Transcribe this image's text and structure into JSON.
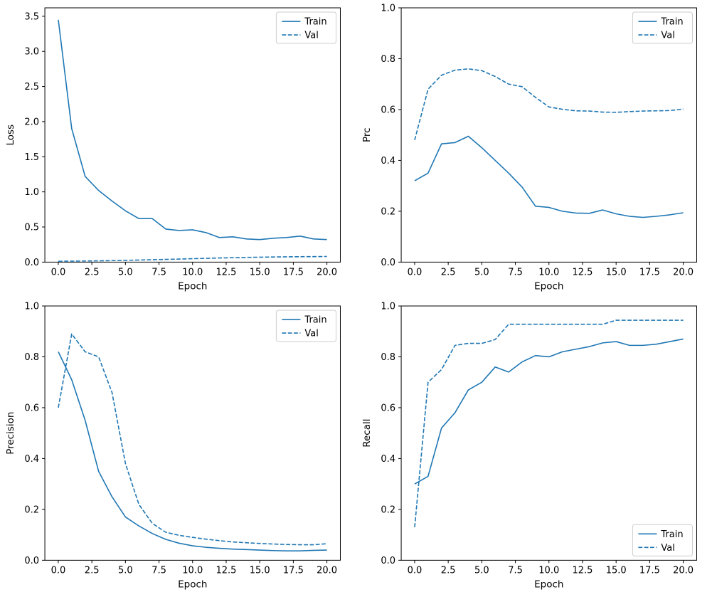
{
  "figure": {
    "background": "#ffffff",
    "spine_color": "#000000",
    "text_color": "#000000",
    "legend_edge_color": "#cccccc",
    "accent_color": "#1f77b4"
  },
  "chart_data": [
    {
      "type": "line",
      "title": "",
      "xlabel": "Epoch",
      "ylabel": "Loss",
      "grid": false,
      "xlim": [
        -1,
        21
      ],
      "ylim": [
        0,
        3.62
      ],
      "xticks": [
        0,
        2.5,
        5,
        7.5,
        10,
        12.5,
        15,
        17.5,
        20
      ],
      "xtick_labels": [
        "0.0",
        "2.5",
        "5.0",
        "7.5",
        "10.0",
        "12.5",
        "15.0",
        "17.5",
        "20.0"
      ],
      "yticks": [
        0,
        0.5,
        1.0,
        1.5,
        2.0,
        2.5,
        3.0,
        3.5
      ],
      "ytick_labels": [
        "0.0",
        "0.5",
        "1.0",
        "1.5",
        "2.0",
        "2.5",
        "3.0",
        "3.5"
      ],
      "x": [
        0,
        1,
        2,
        3,
        4,
        5,
        6,
        7,
        8,
        9,
        10,
        11,
        12,
        13,
        14,
        15,
        16,
        17,
        18,
        19,
        20
      ],
      "series": [
        {
          "name": "Train",
          "linestyle": "solid",
          "color": "#1f77b4",
          "values": [
            3.45,
            1.9,
            1.22,
            1.02,
            0.87,
            0.73,
            0.62,
            0.62,
            0.47,
            0.45,
            0.46,
            0.42,
            0.35,
            0.36,
            0.33,
            0.32,
            0.34,
            0.35,
            0.37,
            0.33,
            0.32
          ]
        },
        {
          "name": "Val",
          "linestyle": "dashed",
          "color": "#1f77b4",
          "values": [
            0.012,
            0.013,
            0.016,
            0.018,
            0.021,
            0.025,
            0.029,
            0.034,
            0.039,
            0.044,
            0.049,
            0.054,
            0.059,
            0.063,
            0.067,
            0.07,
            0.073,
            0.075,
            0.077,
            0.078,
            0.08
          ]
        }
      ],
      "legend": {
        "entries": [
          "Train",
          "Val"
        ],
        "loc": "upper right"
      }
    },
    {
      "type": "line",
      "title": "",
      "xlabel": "Epoch",
      "ylabel": "Prc",
      "grid": false,
      "xlim": [
        -1,
        21
      ],
      "ylim": [
        0,
        1
      ],
      "xticks": [
        0,
        2.5,
        5,
        7.5,
        10,
        12.5,
        15,
        17.5,
        20
      ],
      "xtick_labels": [
        "0.0",
        "2.5",
        "5.0",
        "7.5",
        "10.0",
        "12.5",
        "15.0",
        "17.5",
        "20.0"
      ],
      "yticks": [
        0,
        0.2,
        0.4,
        0.6,
        0.8,
        1.0
      ],
      "ytick_labels": [
        "0.0",
        "0.2",
        "0.4",
        "0.6",
        "0.8",
        "1.0"
      ],
      "x": [
        0,
        1,
        2,
        3,
        4,
        5,
        6,
        7,
        8,
        9,
        10,
        11,
        12,
        13,
        14,
        15,
        16,
        17,
        18,
        19,
        20
      ],
      "series": [
        {
          "name": "Train",
          "linestyle": "solid",
          "color": "#1f77b4",
          "values": [
            0.32,
            0.35,
            0.465,
            0.47,
            0.495,
            0.45,
            0.4,
            0.35,
            0.295,
            0.22,
            0.215,
            0.2,
            0.193,
            0.192,
            0.205,
            0.19,
            0.18,
            0.176,
            0.18,
            0.186,
            0.194
          ]
        },
        {
          "name": "Val",
          "linestyle": "dashed",
          "color": "#1f77b4",
          "values": [
            0.48,
            0.68,
            0.735,
            0.755,
            0.76,
            0.753,
            0.73,
            0.7,
            0.69,
            0.648,
            0.61,
            0.601,
            0.595,
            0.594,
            0.59,
            0.589,
            0.592,
            0.594,
            0.595,
            0.596,
            0.602
          ]
        }
      ],
      "legend": {
        "entries": [
          "Train",
          "Val"
        ],
        "loc": "upper right"
      }
    },
    {
      "type": "line",
      "title": "",
      "xlabel": "Epoch",
      "ylabel": "Precision",
      "grid": false,
      "xlim": [
        -1,
        21
      ],
      "ylim": [
        0,
        1
      ],
      "xticks": [
        0,
        2.5,
        5,
        7.5,
        10,
        12.5,
        15,
        17.5,
        20
      ],
      "xtick_labels": [
        "0.0",
        "2.5",
        "5.0",
        "7.5",
        "10.0",
        "12.5",
        "15.0",
        "17.5",
        "20.0"
      ],
      "yticks": [
        0,
        0.2,
        0.4,
        0.6,
        0.8,
        1.0
      ],
      "ytick_labels": [
        "0.0",
        "0.2",
        "0.4",
        "0.6",
        "0.8",
        "1.0"
      ],
      "x": [
        0,
        1,
        2,
        3,
        4,
        5,
        6,
        7,
        8,
        9,
        10,
        11,
        12,
        13,
        14,
        15,
        16,
        17,
        18,
        19,
        20
      ],
      "series": [
        {
          "name": "Train",
          "linestyle": "solid",
          "color": "#1f77b4",
          "values": [
            0.82,
            0.71,
            0.55,
            0.35,
            0.25,
            0.17,
            0.135,
            0.105,
            0.082,
            0.067,
            0.057,
            0.051,
            0.047,
            0.044,
            0.042,
            0.04,
            0.038,
            0.037,
            0.037,
            0.039,
            0.04
          ]
        },
        {
          "name": "Val",
          "linestyle": "dashed",
          "color": "#1f77b4",
          "values": [
            0.6,
            0.89,
            0.82,
            0.8,
            0.66,
            0.38,
            0.22,
            0.145,
            0.11,
            0.098,
            0.09,
            0.083,
            0.077,
            0.072,
            0.069,
            0.066,
            0.064,
            0.062,
            0.061,
            0.061,
            0.065
          ]
        }
      ],
      "legend": {
        "entries": [
          "Train",
          "Val"
        ],
        "loc": "upper right"
      }
    },
    {
      "type": "line",
      "title": "",
      "xlabel": "Epoch",
      "ylabel": "Recall",
      "grid": false,
      "xlim": [
        -1,
        21
      ],
      "ylim": [
        0,
        1
      ],
      "xticks": [
        0,
        2.5,
        5,
        7.5,
        10,
        12.5,
        15,
        17.5,
        20
      ],
      "xtick_labels": [
        "0.0",
        "2.5",
        "5.0",
        "7.5",
        "10.0",
        "12.5",
        "15.0",
        "17.5",
        "20.0"
      ],
      "yticks": [
        0,
        0.2,
        0.4,
        0.6,
        0.8,
        1.0
      ],
      "ytick_labels": [
        "0.0",
        "0.2",
        "0.4",
        "0.6",
        "0.8",
        "1.0"
      ],
      "x": [
        0,
        1,
        2,
        3,
        4,
        5,
        6,
        7,
        8,
        9,
        10,
        11,
        12,
        13,
        14,
        15,
        16,
        17,
        18,
        19,
        20
      ],
      "series": [
        {
          "name": "Train",
          "linestyle": "solid",
          "color": "#1f77b4",
          "values": [
            0.3,
            0.33,
            0.52,
            0.58,
            0.67,
            0.7,
            0.76,
            0.74,
            0.78,
            0.805,
            0.8,
            0.82,
            0.83,
            0.84,
            0.855,
            0.86,
            0.845,
            0.845,
            0.85,
            0.86,
            0.87
          ]
        },
        {
          "name": "Val",
          "linestyle": "dashed",
          "color": "#1f77b4",
          "values": [
            0.13,
            0.7,
            0.75,
            0.845,
            0.853,
            0.853,
            0.868,
            0.928,
            0.928,
            0.928,
            0.928,
            0.928,
            0.928,
            0.928,
            0.928,
            0.944,
            0.944,
            0.944,
            0.944,
            0.944,
            0.944
          ]
        }
      ],
      "legend": {
        "entries": [
          "Train",
          "Val"
        ],
        "loc": "lower right"
      }
    }
  ]
}
